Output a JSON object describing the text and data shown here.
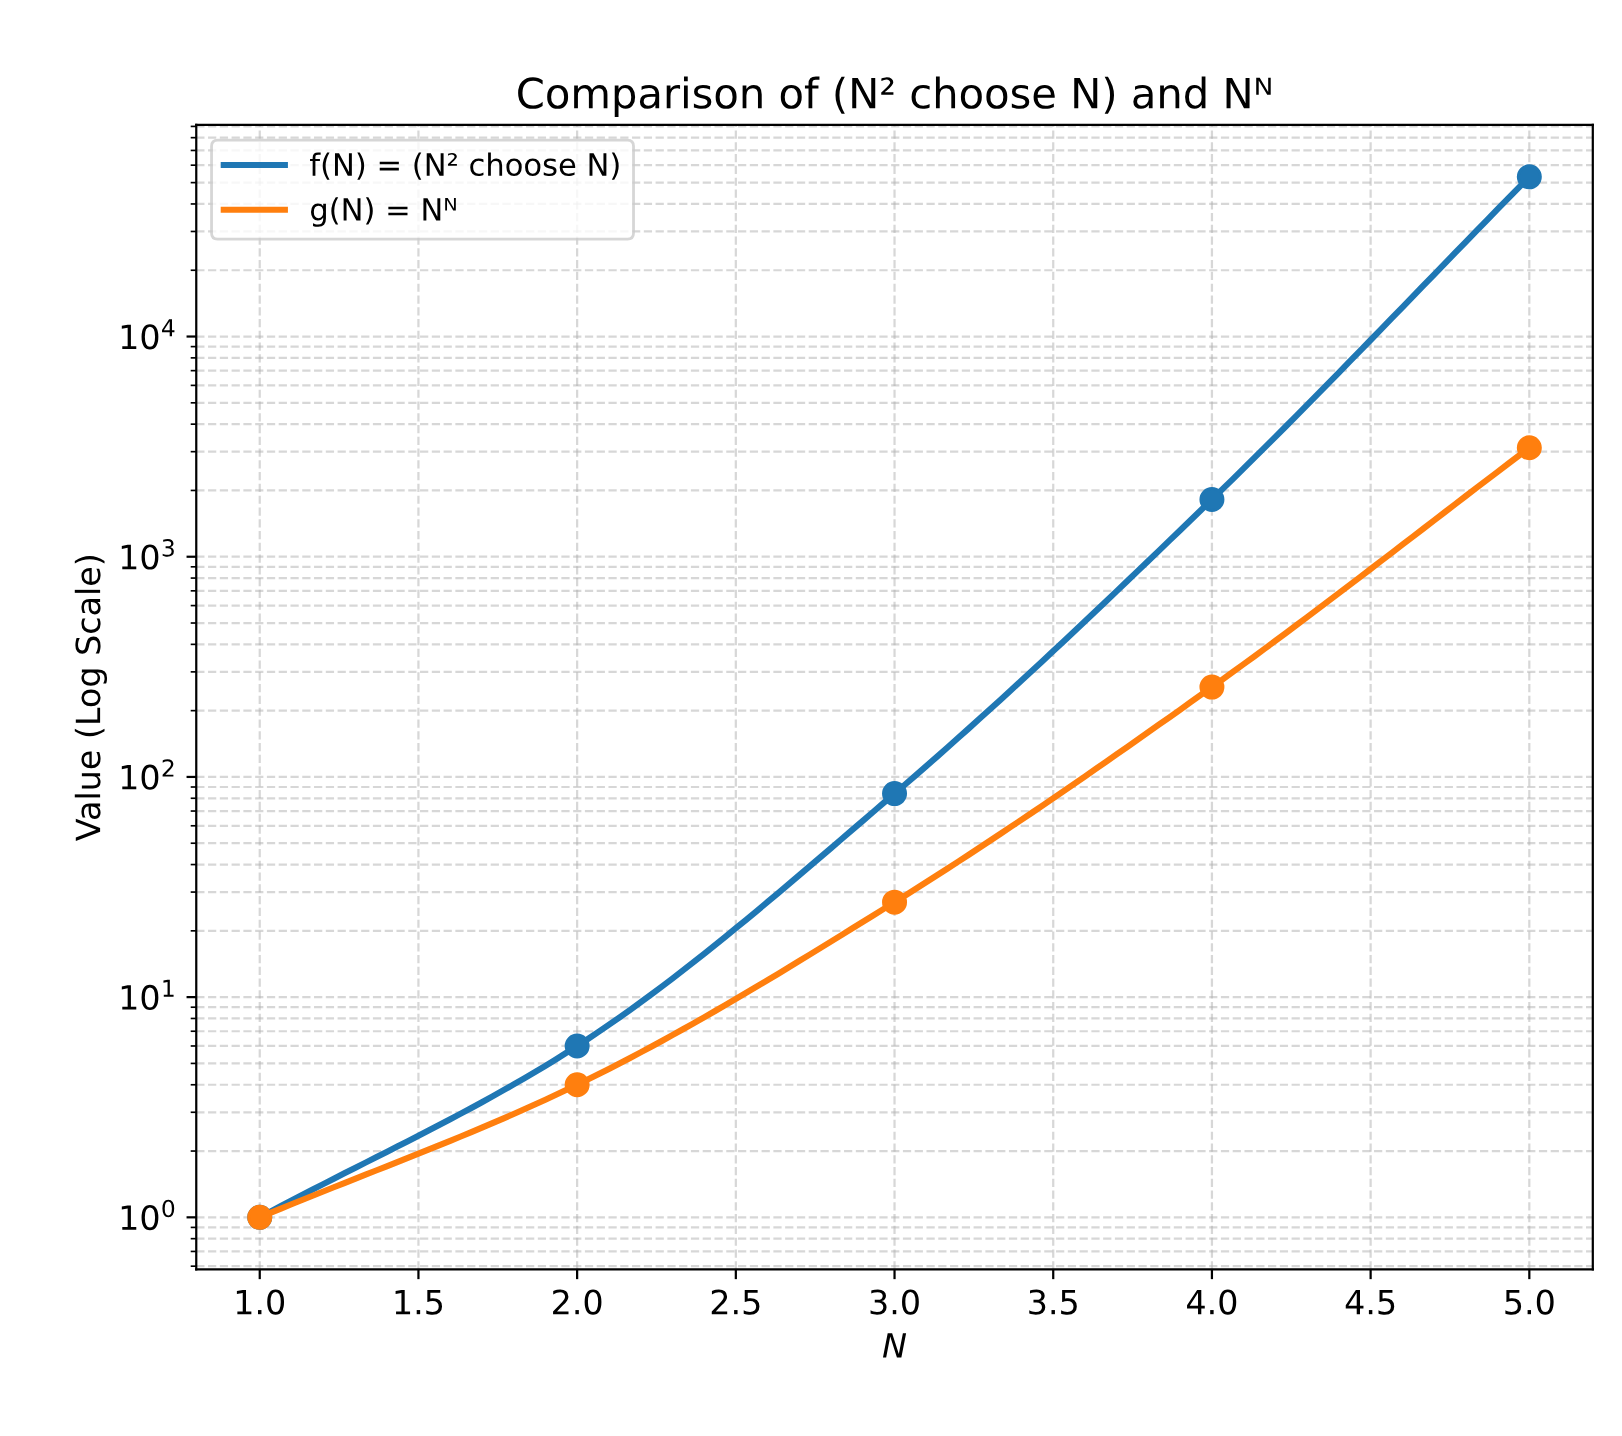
{
  "chart_data": {
    "type": "line",
    "title": "Comparison of (N² choose N) and Nᴺ",
    "xlabel": "N",
    "ylabel": "Value (Log Scale)",
    "x": [
      1,
      2,
      3,
      4,
      5
    ],
    "series": [
      {
        "name": "f(N) = (N² choose N)",
        "color": "#1f77b4",
        "values": [
          1,
          6,
          84,
          1820,
          53130
        ]
      },
      {
        "name": "g(N) = Nᴺ",
        "color": "#ff7f0e",
        "values": [
          1,
          4,
          27,
          256,
          3125
        ]
      }
    ],
    "log": "y",
    "xlim": [
      0.8,
      5.2
    ],
    "xticks": [
      {
        "value": 1,
        "label": "1.0"
      },
      {
        "value": 1.5,
        "label": "1.5"
      },
      {
        "value": 2,
        "label": "2.0"
      },
      {
        "value": 2.5,
        "label": "2.5"
      },
      {
        "value": 3,
        "label": "3.0"
      },
      {
        "value": 3.5,
        "label": "3.5"
      },
      {
        "value": 4,
        "label": "4.0"
      },
      {
        "value": 4.5,
        "label": "4.5"
      },
      {
        "value": 5,
        "label": "5.0"
      }
    ],
    "ylim": [
      0.58,
      91400
    ],
    "yticks": [
      {
        "value": 1,
        "label": "10$^{0}$"
      },
      {
        "value": 10,
        "label": "10$^{1}$"
      },
      {
        "value": 100,
        "label": "10$^{2}$"
      },
      {
        "value": 1000,
        "label": "10$^{3}$"
      },
      {
        "value": 10000,
        "label": "10$^{4}$"
      }
    ],
    "grid": true,
    "legend": "top left",
    "marker": "circle",
    "line_style": "solid"
  }
}
